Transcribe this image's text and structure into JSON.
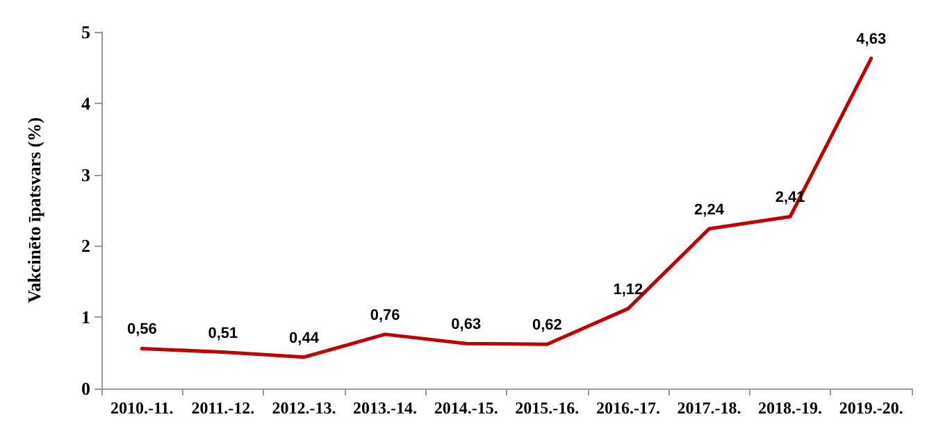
{
  "chart_data": {
    "type": "line",
    "ylabel": "Vakcinēto īpatsvars (%)",
    "categories": [
      "2010.-11.",
      "2011.-12.",
      "2012.-13.",
      "2013.-14.",
      "2014.-15.",
      "2015.-16.",
      "2016.-17.",
      "2017.-18.",
      "2018.-19.",
      "2019.-20."
    ],
    "series": [
      {
        "color": "#c00000",
        "values": [
          0.56,
          0.51,
          0.44,
          0.76,
          0.63,
          0.62,
          1.12,
          2.24,
          2.41,
          4.63
        ],
        "value_labels": [
          "0,56",
          "0,51",
          "0,44",
          "0,76",
          "0,63",
          "0,62",
          "1,12",
          "2,24",
          "2,41",
          "4,63"
        ]
      }
    ],
    "ylim": [
      0,
      5
    ],
    "yticks": [
      0,
      1,
      2,
      3,
      4,
      5
    ],
    "grid": false,
    "marker": "none",
    "line_style": "solid"
  }
}
